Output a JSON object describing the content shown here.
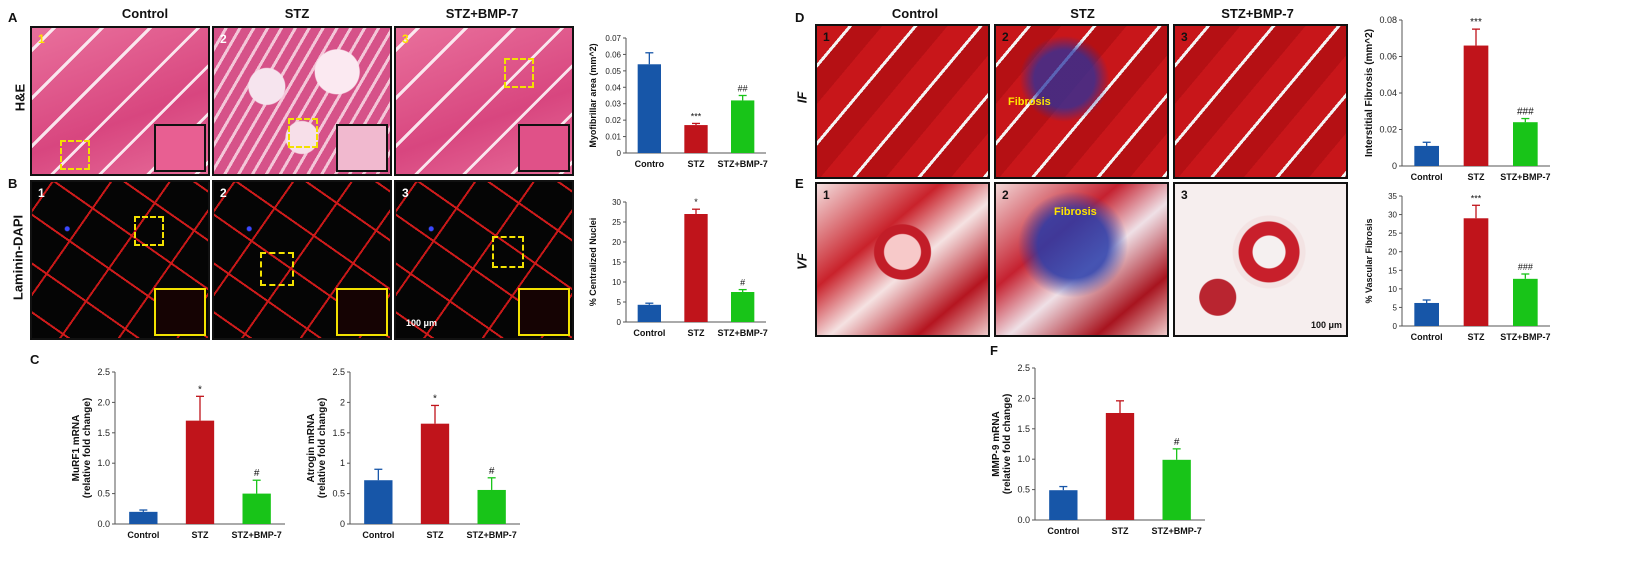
{
  "panels": {
    "A": {
      "label": "A",
      "row_label": "H&E"
    },
    "B": {
      "label": "B",
      "row_label": "Laminin-DAPI",
      "scale": "100 μm"
    },
    "C": {
      "label": "C"
    },
    "D": {
      "label": "D",
      "row_label": "IF",
      "annotation": "Fibrosis"
    },
    "E": {
      "label": "E",
      "row_label": "VF",
      "annotation": "Fibrosis",
      "scale": "100 μm"
    },
    "F": {
      "label": "F"
    }
  },
  "column_titles": {
    "left": [
      "Control",
      "STZ",
      "STZ+BMP-7"
    ],
    "right": [
      "Control",
      "STZ",
      "STZ+BMP-7"
    ]
  },
  "image_numbers": [
    "1",
    "2",
    "3"
  ],
  "colors": {
    "control": "#1756a8",
    "stz": "#c0141b",
    "bmp7": "#18c418"
  },
  "chart_data": [
    {
      "id": "A",
      "type": "bar",
      "categories": [
        "Contro",
        "STZ",
        "STZ+BMP-7"
      ],
      "values": [
        0.054,
        0.017,
        0.032
      ],
      "errors": [
        0.007,
        0.001,
        0.003
      ],
      "annotations": [
        "",
        "***",
        "##"
      ],
      "ylabel": "Myofibrillar area (mm^2)",
      "ylim": [
        0,
        0.07
      ],
      "yticks": [
        0,
        0.01,
        0.02,
        0.03,
        0.04,
        0.05,
        0.06,
        0.07
      ],
      "ytick_labels": [
        "0",
        "0.01",
        "0.02",
        "0.03",
        "0.04",
        "0.05",
        "0.06",
        "0.07"
      ]
    },
    {
      "id": "B",
      "type": "bar",
      "categories": [
        "Control",
        "STZ",
        "STZ+BMP-7"
      ],
      "values": [
        4.3,
        27,
        7.5
      ],
      "errors": [
        0.4,
        1.2,
        0.6
      ],
      "annotations": [
        "",
        "*",
        "#"
      ],
      "ylabel": "% Centralized Nuclei",
      "ylim": [
        0,
        30
      ],
      "yticks": [
        0,
        5,
        10,
        15,
        20,
        25,
        30
      ],
      "ytick_labels": [
        "0",
        "5",
        "10",
        "15",
        "20",
        "25",
        "30"
      ]
    },
    {
      "id": "C1",
      "type": "bar",
      "categories": [
        "Control",
        "STZ",
        "STZ+BMP-7"
      ],
      "values": [
        0.2,
        1.7,
        0.5
      ],
      "errors": [
        0.03,
        0.4,
        0.22
      ],
      "annotations": [
        "",
        "*",
        "#"
      ],
      "ylabel": "MuRF1 mRNA",
      "ylabel2": "(relative fold change)",
      "ylim": [
        0,
        2.5
      ],
      "yticks": [
        0,
        0.5,
        1,
        1.5,
        2,
        2.5
      ],
      "ytick_labels": [
        "0.0",
        "0.5",
        "1.0",
        "1.5",
        "2.0",
        "2.5"
      ]
    },
    {
      "id": "C2",
      "type": "bar",
      "categories": [
        "Control",
        "STZ",
        "STZ+BMP-7"
      ],
      "values": [
        0.72,
        1.65,
        0.56
      ],
      "errors": [
        0.18,
        0.3,
        0.2
      ],
      "annotations": [
        "",
        "*",
        "#"
      ],
      "ylabel": "Atrogin mRNA",
      "ylabel2": "(relative fold change)",
      "ylim": [
        0,
        2.5
      ],
      "yticks": [
        0,
        0.5,
        1,
        1.5,
        2,
        2.5
      ],
      "ytick_labels": [
        "0",
        "0.5",
        "1",
        "1.5",
        "2",
        "2.5"
      ]
    },
    {
      "id": "D",
      "type": "bar",
      "categories": [
        "Control",
        "STZ",
        "STZ+BMP-7"
      ],
      "values": [
        0.011,
        0.066,
        0.024
      ],
      "errors": [
        0.002,
        0.009,
        0.002
      ],
      "annotations": [
        "",
        "***",
        "###"
      ],
      "ylabel": "Interstitial Fibrosis (mm^2)",
      "ylim": [
        0,
        0.08
      ],
      "yticks": [
        0,
        0.02,
        0.04,
        0.06,
        0.08
      ],
      "ytick_labels": [
        "0",
        "0.02",
        "0.04",
        "0.06",
        "0.08"
      ]
    },
    {
      "id": "E",
      "type": "bar",
      "categories": [
        "Control",
        "STZ",
        "STZ+BMP-7"
      ],
      "values": [
        6.2,
        29,
        12.7
      ],
      "errors": [
        0.8,
        3.5,
        1.3
      ],
      "annotations": [
        "",
        "***",
        "###"
      ],
      "ylabel": "% Vascular Fibrosis",
      "ylim": [
        0,
        35
      ],
      "yticks": [
        0,
        5,
        10,
        15,
        20,
        25,
        30,
        35
      ],
      "ytick_labels": [
        "0",
        "5",
        "10",
        "15",
        "20",
        "25",
        "30",
        "35"
      ]
    },
    {
      "id": "F",
      "type": "bar",
      "categories": [
        "Control",
        "STZ",
        "STZ+BMP-7"
      ],
      "values": [
        0.49,
        1.76,
        0.99
      ],
      "errors": [
        0.06,
        0.2,
        0.18
      ],
      "annotations": [
        "",
        "",
        "#"
      ],
      "ylabel": "MMP-9 mRNA",
      "ylabel2": "(relative fold change)",
      "ylim": [
        0,
        2.5
      ],
      "yticks": [
        0,
        0.5,
        1,
        1.5,
        2,
        2.5
      ],
      "ytick_labels": [
        "0.0",
        "0.5",
        "1.0",
        "1.5",
        "2.0",
        "2.5"
      ]
    }
  ]
}
